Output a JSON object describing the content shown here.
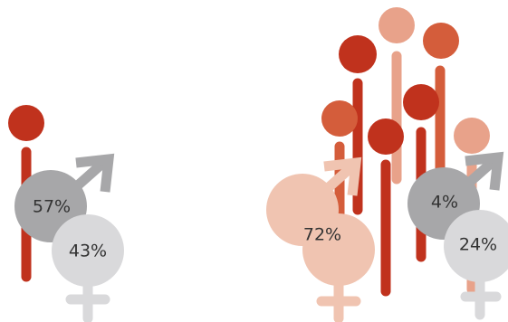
{
  "colors": {
    "red": "#c0321d",
    "orange": "#d45d3b",
    "salmon": "#e8a28a",
    "peach": "#f0c4b1",
    "grey": "#a7a7a9",
    "light_grey": "#d9d9db",
    "white": "#ffffff"
  },
  "groups": [
    {
      "male": {
        "value": "57%",
        "color_key": "grey"
      },
      "female": {
        "value": "43%",
        "color_key": "light_grey"
      }
    },
    {
      "male": {
        "value": "72%",
        "color_key": "peach"
      },
      "female": {
        "value": "",
        "color_key": "peach"
      }
    },
    {
      "male": {
        "value": "4%",
        "color_key": "grey"
      },
      "female": {
        "value": "24%",
        "color_key": "light_grey"
      }
    }
  ]
}
